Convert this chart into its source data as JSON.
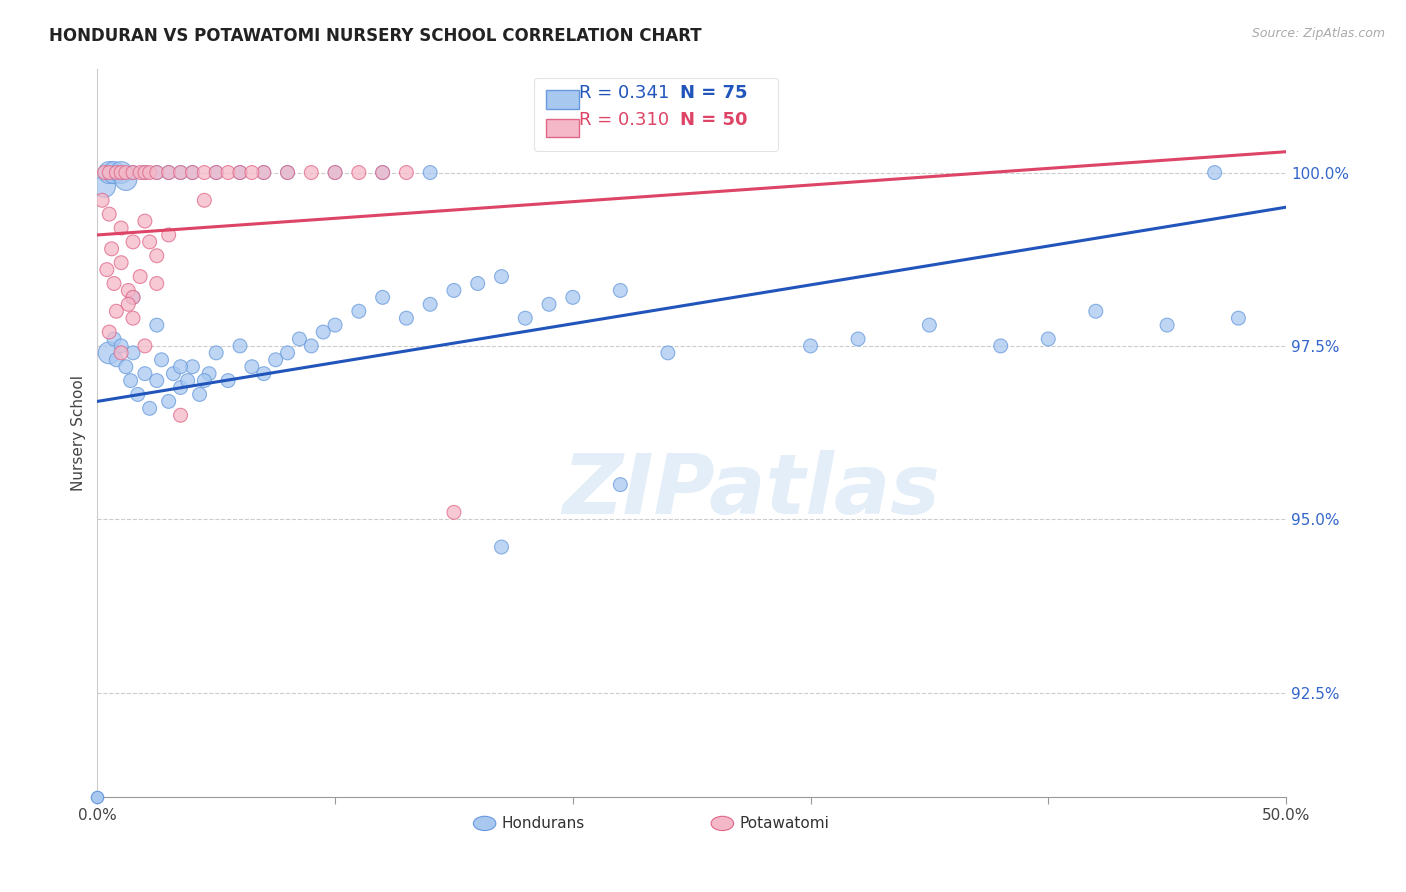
{
  "title": "HONDURAN VS POTAWATOMI NURSERY SCHOOL CORRELATION CHART",
  "source": "Source: ZipAtlas.com",
  "ylabel": "Nursery School",
  "xlim": [
    0.0,
    50.0
  ],
  "ylim": [
    91.0,
    101.5
  ],
  "yticks": [
    92.5,
    95.0,
    97.5,
    100.0
  ],
  "ytick_labels": [
    "92.5%",
    "95.0%",
    "97.5%",
    "100.0%"
  ],
  "xtick_positions": [
    0,
    10,
    20,
    30,
    40,
    50
  ],
  "xtick_labels": [
    "0.0%",
    "",
    "",
    "",
    "",
    "50.0%"
  ],
  "legend_blue_r": "R = 0.341",
  "legend_blue_n": "N = 75",
  "legend_pink_r": "R = 0.310",
  "legend_pink_n": "N = 50",
  "blue_color": "#a8c8f0",
  "blue_edge": "#6699dd",
  "pink_color": "#f5b8c8",
  "pink_edge": "#e06688",
  "blue_line_color": "#2255bb",
  "pink_line_color": "#dd4466",
  "watermark_text": "ZIPatlas",
  "blue_dot_size": 100,
  "pink_dot_size": 100,
  "blue_dots": [
    [
      0.5,
      97.4
    ],
    [
      0.7,
      97.6
    ],
    [
      0.8,
      97.3
    ],
    [
      1.0,
      97.5
    ],
    [
      1.2,
      97.2
    ],
    [
      1.4,
      97.0
    ],
    [
      1.5,
      97.4
    ],
    [
      1.7,
      96.8
    ],
    [
      2.0,
      97.1
    ],
    [
      2.2,
      96.6
    ],
    [
      2.5,
      97.0
    ],
    [
      2.7,
      97.3
    ],
    [
      3.0,
      96.7
    ],
    [
      3.2,
      97.1
    ],
    [
      3.5,
      96.9
    ],
    [
      3.8,
      97.0
    ],
    [
      4.0,
      97.2
    ],
    [
      4.3,
      96.8
    ],
    [
      4.7,
      97.1
    ],
    [
      5.0,
      97.4
    ],
    [
      5.5,
      97.0
    ],
    [
      6.0,
      97.5
    ],
    [
      6.5,
      97.2
    ],
    [
      7.0,
      97.1
    ],
    [
      7.5,
      97.3
    ],
    [
      8.0,
      97.4
    ],
    [
      8.5,
      97.6
    ],
    [
      9.0,
      97.5
    ],
    [
      9.5,
      97.7
    ],
    [
      10.0,
      97.8
    ],
    [
      11.0,
      98.0
    ],
    [
      12.0,
      98.2
    ],
    [
      13.0,
      97.9
    ],
    [
      14.0,
      98.1
    ],
    [
      15.0,
      98.3
    ],
    [
      16.0,
      98.4
    ],
    [
      17.0,
      98.5
    ],
    [
      18.0,
      97.9
    ],
    [
      19.0,
      98.1
    ],
    [
      20.0,
      98.2
    ],
    [
      22.0,
      98.3
    ],
    [
      24.0,
      97.4
    ],
    [
      30.0,
      97.5
    ],
    [
      32.0,
      97.6
    ],
    [
      35.0,
      97.8
    ],
    [
      38.0,
      97.5
    ],
    [
      40.0,
      97.6
    ],
    [
      42.0,
      98.0
    ],
    [
      45.0,
      97.8
    ],
    [
      48.0,
      97.9
    ],
    [
      0.3,
      99.8
    ],
    [
      0.5,
      100.0
    ],
    [
      0.7,
      100.0
    ],
    [
      1.0,
      100.0
    ],
    [
      1.2,
      99.9
    ],
    [
      1.5,
      100.0
    ],
    [
      2.0,
      100.0
    ],
    [
      2.5,
      100.0
    ],
    [
      3.0,
      100.0
    ],
    [
      3.5,
      100.0
    ],
    [
      4.0,
      100.0
    ],
    [
      5.0,
      100.0
    ],
    [
      6.0,
      100.0
    ],
    [
      7.0,
      100.0
    ],
    [
      8.0,
      100.0
    ],
    [
      10.0,
      100.0
    ],
    [
      12.0,
      100.0
    ],
    [
      14.0,
      100.0
    ],
    [
      47.0,
      100.0
    ],
    [
      1.5,
      98.2
    ],
    [
      2.5,
      97.8
    ],
    [
      3.5,
      97.2
    ],
    [
      4.5,
      97.0
    ],
    [
      22.0,
      95.5
    ],
    [
      17.0,
      94.6
    ]
  ],
  "pink_dots": [
    [
      0.3,
      100.0
    ],
    [
      0.5,
      100.0
    ],
    [
      0.8,
      100.0
    ],
    [
      1.0,
      100.0
    ],
    [
      1.2,
      100.0
    ],
    [
      1.5,
      100.0
    ],
    [
      1.8,
      100.0
    ],
    [
      2.0,
      100.0
    ],
    [
      2.2,
      100.0
    ],
    [
      2.5,
      100.0
    ],
    [
      3.0,
      100.0
    ],
    [
      3.5,
      100.0
    ],
    [
      4.0,
      100.0
    ],
    [
      4.5,
      100.0
    ],
    [
      5.0,
      100.0
    ],
    [
      5.5,
      100.0
    ],
    [
      6.0,
      100.0
    ],
    [
      7.0,
      100.0
    ],
    [
      8.0,
      100.0
    ],
    [
      9.0,
      100.0
    ],
    [
      10.0,
      100.0
    ],
    [
      11.0,
      100.0
    ],
    [
      12.0,
      100.0
    ],
    [
      13.0,
      100.0
    ],
    [
      0.5,
      99.4
    ],
    [
      1.0,
      99.2
    ],
    [
      1.5,
      99.0
    ],
    [
      2.0,
      99.3
    ],
    [
      2.5,
      98.8
    ],
    [
      3.0,
      99.1
    ],
    [
      0.4,
      98.6
    ],
    [
      0.7,
      98.4
    ],
    [
      1.0,
      98.7
    ],
    [
      1.3,
      98.3
    ],
    [
      1.8,
      98.5
    ],
    [
      2.2,
      99.0
    ],
    [
      0.5,
      97.7
    ],
    [
      1.0,
      97.4
    ],
    [
      1.5,
      97.9
    ],
    [
      2.0,
      97.5
    ],
    [
      0.8,
      98.0
    ],
    [
      1.5,
      98.2
    ],
    [
      2.5,
      98.4
    ],
    [
      4.5,
      99.6
    ],
    [
      6.5,
      100.0
    ],
    [
      15.0,
      95.1
    ],
    [
      3.5,
      96.5
    ],
    [
      0.2,
      99.6
    ],
    [
      0.6,
      98.9
    ],
    [
      1.3,
      98.1
    ]
  ],
  "large_blue_dots": [
    0,
    50,
    51,
    52,
    53,
    54
  ],
  "large_blue_size": 250,
  "large_pink_dots": [],
  "large_pink_size": 200,
  "blue_line_points": [
    [
      0.0,
      96.7
    ],
    [
      50.0,
      99.5
    ]
  ],
  "pink_line_points": [
    [
      0.0,
      99.1
    ],
    [
      50.0,
      100.3
    ]
  ]
}
